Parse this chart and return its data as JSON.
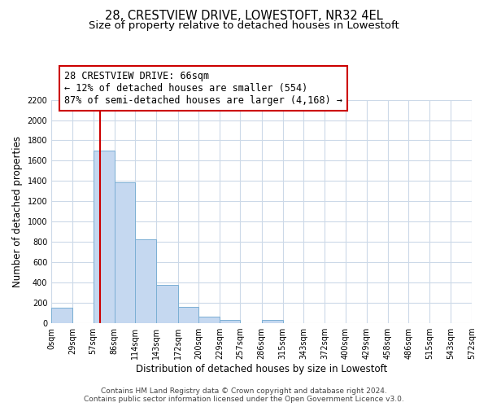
{
  "title": "28, CRESTVIEW DRIVE, LOWESTOFT, NR32 4EL",
  "subtitle": "Size of property relative to detached houses in Lowestoft",
  "xlabel": "Distribution of detached houses by size in Lowestoft",
  "ylabel": "Number of detached properties",
  "bar_edges": [
    0,
    29,
    57,
    86,
    114,
    143,
    172,
    200,
    229,
    257,
    286,
    315,
    343,
    372,
    400,
    429,
    458,
    486,
    515,
    543,
    572
  ],
  "bar_heights": [
    150,
    0,
    1700,
    1390,
    830,
    380,
    160,
    65,
    30,
    0,
    30,
    0,
    0,
    0,
    0,
    0,
    0,
    0,
    0,
    0
  ],
  "bar_color": "#c5d8f0",
  "bar_edge_color": "#7bafd4",
  "vline_x": 66,
  "vline_color": "#cc0000",
  "annotation_text": "28 CRESTVIEW DRIVE: 66sqm\n← 12% of detached houses are smaller (554)\n87% of semi-detached houses are larger (4,168) →",
  "annotation_box_color": "#ffffff",
  "annotation_box_edge": "#cc0000",
  "ylim": [
    0,
    2200
  ],
  "yticks": [
    0,
    200,
    400,
    600,
    800,
    1000,
    1200,
    1400,
    1600,
    1800,
    2000,
    2200
  ],
  "xtick_labels": [
    "0sqm",
    "29sqm",
    "57sqm",
    "86sqm",
    "114sqm",
    "143sqm",
    "172sqm",
    "200sqm",
    "229sqm",
    "257sqm",
    "286sqm",
    "315sqm",
    "343sqm",
    "372sqm",
    "400sqm",
    "429sqm",
    "458sqm",
    "486sqm",
    "515sqm",
    "543sqm",
    "572sqm"
  ],
  "footer_line1": "Contains HM Land Registry data © Crown copyright and database right 2024.",
  "footer_line2": "Contains public sector information licensed under the Open Government Licence v3.0.",
  "bg_color": "#ffffff",
  "grid_color": "#ccd9e8",
  "title_fontsize": 10.5,
  "subtitle_fontsize": 9.5,
  "axis_label_fontsize": 8.5,
  "tick_fontsize": 7,
  "footer_fontsize": 6.5,
  "annot_fontsize": 8.5
}
